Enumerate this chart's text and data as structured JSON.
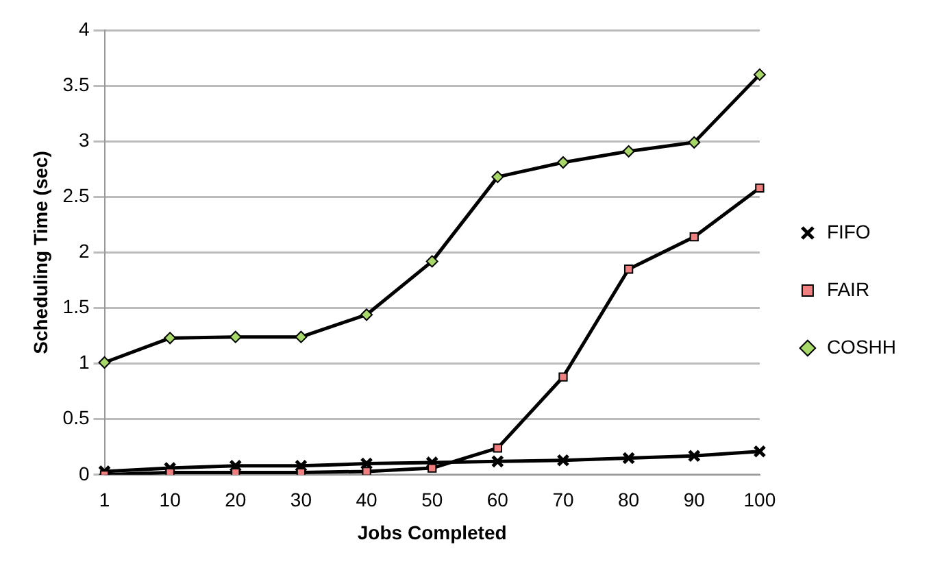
{
  "chart_data": {
    "type": "line",
    "xlabel": "Jobs Completed",
    "ylabel": "Scheduling Time (sec)",
    "categories": [
      "1",
      "10",
      "20",
      "30",
      "40",
      "50",
      "60",
      "70",
      "80",
      "90",
      "100"
    ],
    "series": [
      {
        "name": "FIFO",
        "color": "#000000",
        "marker": "cross",
        "values": [
          0.03,
          0.06,
          0.08,
          0.08,
          0.1,
          0.11,
          0.12,
          0.13,
          0.15,
          0.17,
          0.21
        ]
      },
      {
        "name": "FAIR",
        "color": "#f08080",
        "marker": "square",
        "values": [
          0.0,
          0.02,
          0.02,
          0.02,
          0.03,
          0.06,
          0.24,
          0.88,
          1.85,
          2.14,
          2.58
        ]
      },
      {
        "name": "COSHH",
        "color": "#a8d86a",
        "marker": "diamond",
        "values": [
          1.01,
          1.23,
          1.24,
          1.24,
          1.44,
          1.92,
          2.68,
          2.81,
          2.91,
          2.99,
          3.6
        ]
      }
    ],
    "ylim": [
      0,
      4
    ],
    "yticks": [
      0,
      0.5,
      1,
      1.5,
      2,
      2.5,
      3,
      3.5,
      4
    ],
    "grid": "y",
    "legend": "right",
    "line_style": "solid"
  }
}
